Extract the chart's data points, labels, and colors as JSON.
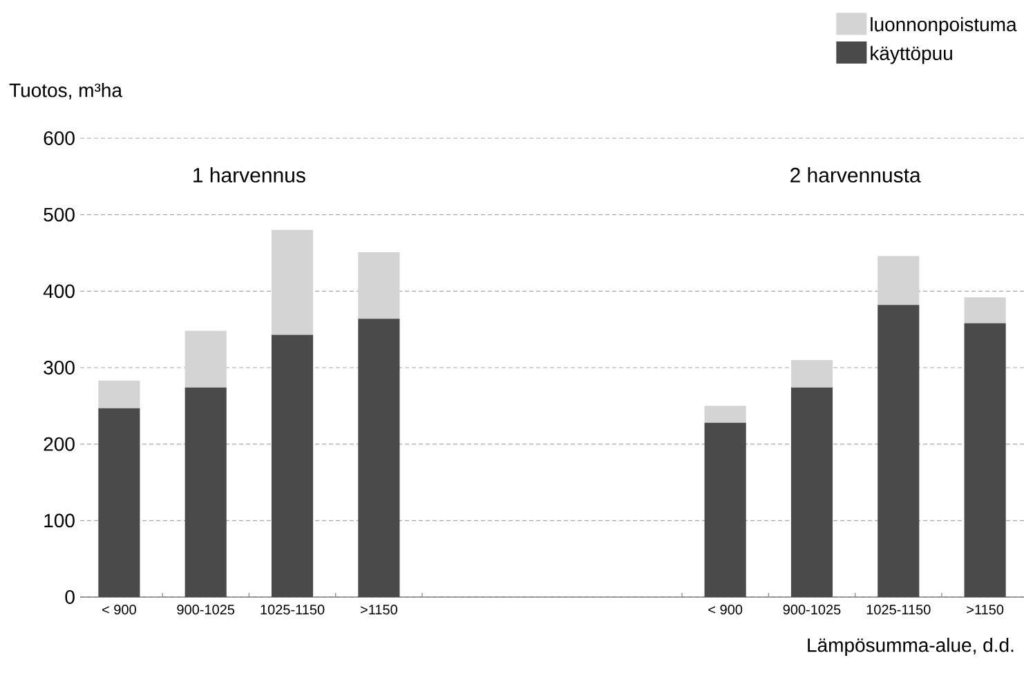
{
  "chart_data": {
    "type": "bar",
    "stacked": true,
    "ylabel": "Tuotos, m³ha",
    "xlabel": "Lämpösumma-alue, d.d.",
    "categories": [
      "< 900",
      "900-1025",
      "1025-1150",
      ">1150",
      null,
      null,
      null,
      "< 900",
      "900-1025",
      "1025-1150",
      ">1150"
    ],
    "series": [
      {
        "name": "käyttöpuu",
        "color": "#4a4a4a",
        "values": [
          247,
          274,
          343,
          364,
          null,
          null,
          null,
          228,
          274,
          382,
          358
        ]
      },
      {
        "name": "luonnonpoistuma",
        "color": "#d4d4d4",
        "values": [
          36,
          74,
          137,
          87,
          null,
          null,
          null,
          22,
          36,
          64,
          34
        ]
      }
    ],
    "ylim": [
      0,
      600
    ],
    "yticks": [
      0,
      100,
      200,
      300,
      400,
      500,
      600
    ],
    "grid": "y",
    "legend": "top right",
    "annotations": [
      "1 harvennus",
      "2 harvennusta"
    ]
  }
}
